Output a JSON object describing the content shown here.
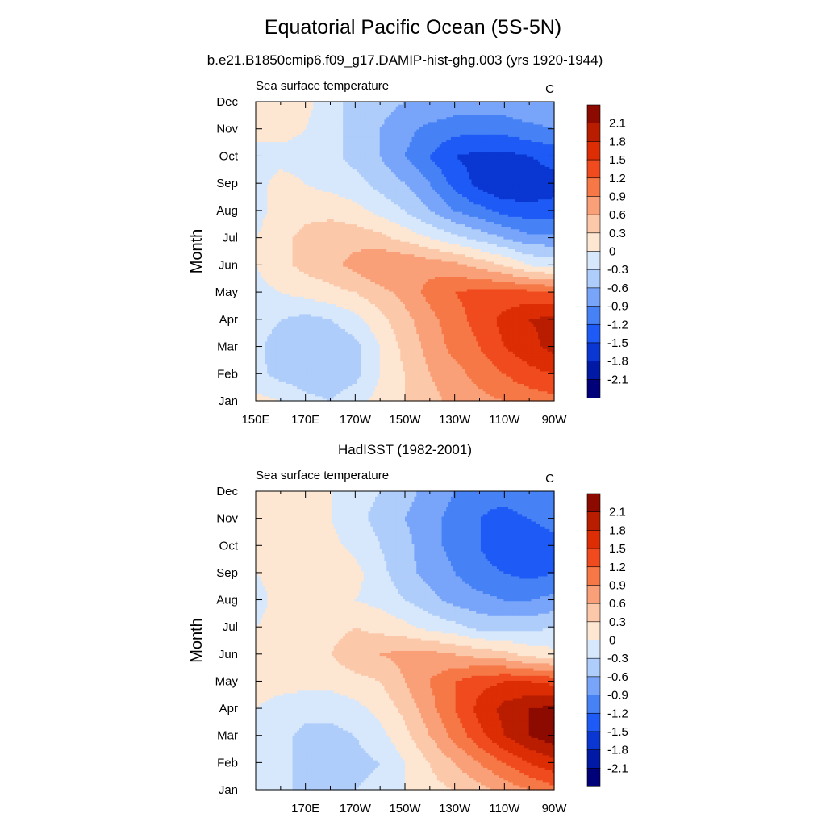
{
  "title": "Equatorial Pacific Ocean (5S-5N)",
  "colorbar": {
    "levels": [
      -2.1,
      -1.8,
      -1.5,
      -1.2,
      -0.9,
      -0.6,
      -0.3,
      0,
      0.3,
      0.6,
      0.9,
      1.2,
      1.5,
      1.8,
      2.1
    ],
    "labels": [
      "2.1",
      "1.8",
      "1.5",
      "1.2",
      "0.9",
      "0.6",
      "0.3",
      "0",
      "-0.3",
      "-0.6",
      "-0.9",
      "-1.2",
      "-1.5",
      "-1.8",
      "-2.1"
    ],
    "colors": [
      "#000078",
      "#001aa5",
      "#0a36d2",
      "#1e5af5",
      "#4682f5",
      "#78a5fa",
      "#afcdfa",
      "#d7e8fc",
      "#fde6d2",
      "#fcc8aa",
      "#f9a078",
      "#f57846",
      "#f04b1e",
      "#dc2d05",
      "#b91d00",
      "#8c0a00"
    ]
  },
  "chart_data": [
    {
      "type": "heatmap",
      "title": "b.e21.B1850cmip6.f09_g17.DAMIP-hist-ghg.003 (yrs 1920-1944)",
      "left_label": "Sea surface temperature",
      "right_label": "C",
      "ylabel": "Month",
      "xlabel": "",
      "x": [
        150,
        160,
        170,
        180,
        190,
        200,
        210,
        220,
        230,
        240,
        250,
        260,
        270
      ],
      "x_ticks": [
        "150E",
        "170E",
        "170W",
        "150W",
        "130W",
        "110W",
        "90W"
      ],
      "y": [
        "Jan",
        "Feb",
        "Mar",
        "Apr",
        "May",
        "Jun",
        "Jul",
        "Aug",
        "Sep",
        "Oct",
        "Nov",
        "Dec"
      ],
      "y_ticks": [
        "Jan",
        "Feb",
        "Mar",
        "Apr",
        "May",
        "Jun",
        "Jul",
        "Aug",
        "Sep",
        "Oct",
        "Nov",
        "Dec"
      ],
      "z": [
        [
          0.1,
          0.0,
          -0.2,
          -0.3,
          -0.1,
          0.1,
          0.3,
          0.5,
          0.7,
          0.8,
          0.9,
          1.0,
          1.1
        ],
        [
          -0.2,
          -0.4,
          -0.5,
          -0.5,
          -0.4,
          0.0,
          0.3,
          0.6,
          0.8,
          1.0,
          1.2,
          1.4,
          1.5
        ],
        [
          -0.2,
          -0.5,
          -0.6,
          -0.6,
          -0.4,
          0.0,
          0.4,
          0.7,
          1.0,
          1.2,
          1.5,
          1.7,
          1.9
        ],
        [
          -0.1,
          -0.3,
          -0.4,
          -0.3,
          -0.1,
          0.2,
          0.5,
          0.8,
          1.1,
          1.3,
          1.6,
          1.8,
          1.9
        ],
        [
          -0.1,
          0.0,
          0.1,
          0.2,
          0.3,
          0.5,
          0.7,
          1.0,
          1.2,
          1.3,
          1.3,
          1.3,
          1.2
        ],
        [
          0.0,
          0.2,
          0.4,
          0.5,
          0.7,
          0.9,
          0.9,
          0.8,
          0.7,
          0.5,
          0.3,
          0.0,
          -0.1
        ],
        [
          0.0,
          0.2,
          0.4,
          0.5,
          0.5,
          0.4,
          0.2,
          0.0,
          -0.2,
          -0.4,
          -0.6,
          -0.8,
          -0.8
        ],
        [
          -0.1,
          0.1,
          0.2,
          0.2,
          0.1,
          -0.1,
          -0.3,
          -0.6,
          -0.9,
          -1.1,
          -1.3,
          -1.4,
          -1.4
        ],
        [
          -0.1,
          0.1,
          0.0,
          -0.1,
          -0.2,
          -0.4,
          -0.6,
          -0.9,
          -1.3,
          -1.6,
          -1.8,
          -1.7,
          -1.6
        ],
        [
          -0.1,
          -0.1,
          -0.1,
          -0.2,
          -0.4,
          -0.6,
          -0.9,
          -1.2,
          -1.5,
          -1.6,
          -1.6,
          -1.5,
          -1.4
        ],
        [
          0.1,
          0.1,
          0.0,
          -0.2,
          -0.4,
          -0.6,
          -0.8,
          -1.0,
          -1.1,
          -1.1,
          -1.1,
          -1.0,
          -0.9
        ],
        [
          0.1,
          0.1,
          0.1,
          -0.2,
          -0.4,
          -0.5,
          -0.6,
          -0.6,
          -0.7,
          -0.7,
          -0.7,
          -0.6,
          -0.6
        ]
      ]
    },
    {
      "type": "heatmap",
      "title": "HadISST (1982-2001)",
      "left_label": "Sea surface temperature",
      "right_label": "C",
      "ylabel": "Month",
      "xlabel": "",
      "x": [
        150,
        160,
        170,
        180,
        190,
        200,
        210,
        220,
        230,
        240,
        250,
        260,
        270
      ],
      "x_ticks": [
        "170E",
        "170W",
        "150W",
        "130W",
        "110W",
        "90W"
      ],
      "y": [
        "Jan",
        "Feb",
        "Mar",
        "Apr",
        "May",
        "Jun",
        "Jul",
        "Aug",
        "Sep",
        "Oct",
        "Nov",
        "Dec"
      ],
      "y_ticks": [
        "Jan",
        "Feb",
        "Mar",
        "Apr",
        "May",
        "Jun",
        "Jul",
        "Aug",
        "Sep",
        "Oct",
        "Nov",
        "Dec"
      ],
      "z": [
        [
          -0.1,
          -0.2,
          -0.4,
          -0.4,
          -0.3,
          -0.2,
          0.0,
          0.2,
          0.3,
          0.5,
          0.7,
          0.9,
          1.1
        ],
        [
          -0.1,
          -0.2,
          -0.4,
          -0.4,
          -0.4,
          -0.3,
          0.0,
          0.3,
          0.6,
          0.9,
          1.2,
          1.5,
          1.7
        ],
        [
          -0.1,
          -0.2,
          -0.4,
          -0.4,
          -0.3,
          -0.1,
          0.2,
          0.6,
          1.0,
          1.4,
          1.8,
          2.1,
          2.3
        ],
        [
          0.0,
          -0.1,
          -0.2,
          -0.2,
          -0.1,
          0.1,
          0.4,
          0.8,
          1.2,
          1.6,
          1.9,
          2.1,
          2.2
        ],
        [
          0.1,
          0.1,
          0.1,
          0.1,
          0.2,
          0.3,
          0.6,
          0.9,
          1.2,
          1.4,
          1.5,
          1.5,
          1.4
        ],
        [
          0.1,
          0.1,
          0.2,
          0.3,
          0.5,
          0.6,
          0.7,
          0.7,
          0.6,
          0.5,
          0.4,
          0.2,
          0.1
        ],
        [
          0.0,
          0.1,
          0.1,
          0.2,
          0.3,
          0.2,
          0.1,
          -0.1,
          -0.2,
          -0.4,
          -0.4,
          -0.4,
          -0.3
        ],
        [
          -0.1,
          0.1,
          0.1,
          0.1,
          0.0,
          -0.1,
          -0.3,
          -0.5,
          -0.7,
          -0.8,
          -0.9,
          -0.9,
          -0.8
        ],
        [
          0.0,
          0.1,
          0.2,
          0.3,
          0.1,
          -0.2,
          -0.5,
          -0.7,
          -0.9,
          -1.1,
          -1.2,
          -1.3,
          -1.2
        ],
        [
          0.1,
          0.2,
          0.2,
          0.1,
          -0.1,
          -0.3,
          -0.5,
          -0.8,
          -1.0,
          -1.2,
          -1.4,
          -1.4,
          -1.3
        ],
        [
          0.1,
          0.2,
          0.1,
          0.0,
          -0.2,
          -0.4,
          -0.6,
          -0.8,
          -1.0,
          -1.2,
          -1.3,
          -1.2,
          -1.1
        ],
        [
          0.1,
          0.2,
          0.2,
          0.0,
          -0.2,
          -0.3,
          -0.5,
          -0.7,
          -0.9,
          -1.1,
          -1.1,
          -1.0,
          -0.9
        ]
      ]
    }
  ]
}
